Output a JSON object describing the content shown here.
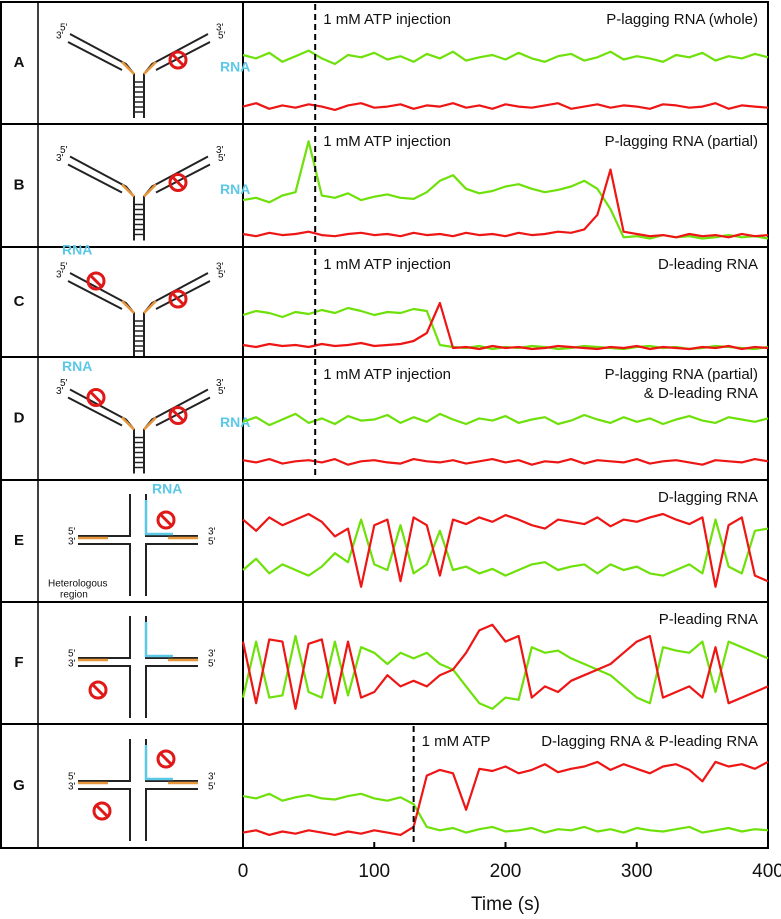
{
  "chart_data": [
    {
      "type": "line",
      "panel_label": "A",
      "title": "P-lagging RNA (whole)",
      "annotation": "1 mM ATP injection",
      "injection_time": 55,
      "diagram_labels": [
        "5'",
        "3'",
        "3'",
        "5'",
        "RNA"
      ],
      "xlim": [
        0,
        400
      ],
      "ylim": [
        0,
        1
      ],
      "x": [
        0,
        10,
        20,
        30,
        40,
        50,
        60,
        70,
        80,
        90,
        100,
        110,
        120,
        130,
        140,
        150,
        160,
        170,
        180,
        190,
        200,
        210,
        220,
        230,
        240,
        250,
        260,
        270,
        280,
        290,
        300,
        310,
        320,
        330,
        340,
        350,
        360,
        370,
        380,
        390,
        400
      ],
      "series": [
        {
          "color": "#6ee00a",
          "values": [
            0.58,
            0.55,
            0.6,
            0.52,
            0.57,
            0.62,
            0.55,
            0.5,
            0.58,
            0.56,
            0.6,
            0.54,
            0.57,
            0.52,
            0.59,
            0.55,
            0.61,
            0.53,
            0.56,
            0.58,
            0.54,
            0.6,
            0.55,
            0.52,
            0.57,
            0.59,
            0.53,
            0.56,
            0.61,
            0.54,
            0.57,
            0.55,
            0.52,
            0.58,
            0.56,
            0.6,
            0.53,
            0.57,
            0.55,
            0.59,
            0.56
          ]
        },
        {
          "color": "#ee1515",
          "values": [
            0.12,
            0.15,
            0.1,
            0.13,
            0.11,
            0.14,
            0.12,
            0.09,
            0.13,
            0.15,
            0.11,
            0.12,
            0.14,
            0.1,
            0.13,
            0.12,
            0.15,
            0.11,
            0.13,
            0.1,
            0.14,
            0.12,
            0.11,
            0.13,
            0.15,
            0.1,
            0.12,
            0.14,
            0.11,
            0.13,
            0.12,
            0.1,
            0.14,
            0.13,
            0.11,
            0.12,
            0.15,
            0.1,
            0.13,
            0.12,
            0.11
          ]
        }
      ]
    },
    {
      "type": "line",
      "panel_label": "B",
      "title": "P-lagging RNA (partial)",
      "annotation": "1 mM ATP injection",
      "injection_time": 55,
      "diagram_labels": [
        "5'",
        "3'",
        "3'",
        "5'",
        "RNA"
      ],
      "xlim": [
        0,
        400
      ],
      "ylim": [
        0,
        1
      ],
      "x": [
        0,
        10,
        20,
        30,
        40,
        50,
        60,
        70,
        80,
        90,
        100,
        110,
        120,
        130,
        140,
        150,
        160,
        170,
        180,
        190,
        200,
        210,
        220,
        230,
        240,
        250,
        260,
        270,
        280,
        290,
        300,
        310,
        320,
        330,
        340,
        350,
        360,
        370,
        380,
        390,
        400
      ],
      "series": [
        {
          "color": "#6ee00a",
          "values": [
            0.38,
            0.4,
            0.36,
            0.42,
            0.45,
            0.9,
            0.42,
            0.4,
            0.44,
            0.38,
            0.41,
            0.43,
            0.4,
            0.39,
            0.45,
            0.55,
            0.6,
            0.48,
            0.44,
            0.46,
            0.5,
            0.52,
            0.48,
            0.45,
            0.47,
            0.5,
            0.55,
            0.48,
            0.3,
            0.05,
            0.06,
            0.04,
            0.07,
            0.05,
            0.06,
            0.04,
            0.05,
            0.07,
            0.05,
            0.06,
            0.04
          ]
        },
        {
          "color": "#ee1515",
          "values": [
            0.08,
            0.06,
            0.09,
            0.07,
            0.08,
            0.1,
            0.07,
            0.06,
            0.08,
            0.09,
            0.07,
            0.08,
            0.06,
            0.09,
            0.07,
            0.08,
            0.06,
            0.09,
            0.07,
            0.08,
            0.06,
            0.09,
            0.07,
            0.08,
            0.1,
            0.09,
            0.12,
            0.25,
            0.65,
            0.1,
            0.08,
            0.06,
            0.07,
            0.05,
            0.08,
            0.06,
            0.07,
            0.05,
            0.08,
            0.06,
            0.07
          ]
        }
      ]
    },
    {
      "type": "line",
      "panel_label": "C",
      "title": "D-leading RNA",
      "annotation": "1 mM ATP injection",
      "injection_time": 55,
      "diagram_labels": [
        "RNA",
        "5'",
        "3'",
        "3'",
        "5'"
      ],
      "xlim": [
        0,
        400
      ],
      "ylim": [
        0,
        1
      ],
      "x": [
        0,
        10,
        20,
        30,
        40,
        50,
        60,
        70,
        80,
        90,
        100,
        110,
        120,
        130,
        140,
        150,
        160,
        170,
        180,
        190,
        200,
        210,
        220,
        230,
        240,
        250,
        260,
        270,
        280,
        290,
        300,
        310,
        320,
        330,
        340,
        350,
        360,
        370,
        380,
        390,
        400
      ],
      "series": [
        {
          "color": "#6ee00a",
          "values": [
            0.38,
            0.42,
            0.4,
            0.36,
            0.41,
            0.39,
            0.43,
            0.4,
            0.45,
            0.42,
            0.38,
            0.41,
            0.4,
            0.44,
            0.42,
            0.08,
            0.06,
            0.05,
            0.07,
            0.04,
            0.06,
            0.05,
            0.07,
            0.06,
            0.04,
            0.05,
            0.07,
            0.06,
            0.05,
            0.04,
            0.06,
            0.07,
            0.05,
            0.06,
            0.04,
            0.05,
            0.07,
            0.06,
            0.05,
            0.04,
            0.06
          ]
        },
        {
          "color": "#ee1515",
          "values": [
            0.08,
            0.06,
            0.09,
            0.07,
            0.08,
            0.06,
            0.09,
            0.07,
            0.08,
            0.1,
            0.07,
            0.08,
            0.09,
            0.12,
            0.2,
            0.5,
            0.05,
            0.06,
            0.04,
            0.07,
            0.05,
            0.06,
            0.04,
            0.05,
            0.07,
            0.06,
            0.05,
            0.04,
            0.06,
            0.05,
            0.07,
            0.04,
            0.06,
            0.05,
            0.04,
            0.06,
            0.05,
            0.07,
            0.04,
            0.06,
            0.05
          ]
        }
      ]
    },
    {
      "type": "line",
      "panel_label": "D",
      "title": [
        "P-lagging RNA (partial)",
        "& D-leading RNA"
      ],
      "annotation": "1 mM ATP injection",
      "injection_time": 55,
      "diagram_labels": [
        "RNA",
        "5'",
        "3'",
        "3'",
        "5'",
        "RNA"
      ],
      "xlim": [
        0,
        400
      ],
      "ylim": [
        0,
        1
      ],
      "x": [
        0,
        10,
        20,
        30,
        40,
        50,
        60,
        70,
        80,
        90,
        100,
        110,
        120,
        130,
        140,
        150,
        160,
        170,
        180,
        190,
        200,
        210,
        220,
        230,
        240,
        250,
        260,
        270,
        280,
        290,
        300,
        310,
        320,
        330,
        340,
        350,
        360,
        370,
        380,
        390,
        400
      ],
      "series": [
        {
          "color": "#6ee00a",
          "values": [
            0.48,
            0.52,
            0.45,
            0.5,
            0.55,
            0.47,
            0.51,
            0.46,
            0.53,
            0.49,
            0.5,
            0.54,
            0.47,
            0.52,
            0.48,
            0.55,
            0.5,
            0.46,
            0.51,
            0.49,
            0.53,
            0.47,
            0.5,
            0.52,
            0.46,
            0.49,
            0.54,
            0.5,
            0.47,
            0.52,
            0.48,
            0.51,
            0.46,
            0.5,
            0.53,
            0.49,
            0.47,
            0.52,
            0.5,
            0.48,
            0.51
          ]
        },
        {
          "color": "#ee1515",
          "values": [
            0.14,
            0.12,
            0.15,
            0.11,
            0.13,
            0.14,
            0.12,
            0.15,
            0.1,
            0.13,
            0.14,
            0.12,
            0.11,
            0.15,
            0.13,
            0.12,
            0.14,
            0.11,
            0.13,
            0.15,
            0.12,
            0.14,
            0.1,
            0.13,
            0.12,
            0.15,
            0.11,
            0.14,
            0.13,
            0.12,
            0.15,
            0.11,
            0.13,
            0.14,
            0.12,
            0.1,
            0.14,
            0.13,
            0.12,
            0.15,
            0.13
          ]
        }
      ]
    },
    {
      "type": "line",
      "panel_label": "E",
      "title": "D-lagging RNA",
      "diagram_labels": [
        "5'",
        "3'",
        "3'",
        "5'",
        "RNA",
        "Heterologous",
        "region"
      ],
      "xlim": [
        0,
        400
      ],
      "ylim": [
        0,
        1
      ],
      "x": [
        0,
        10,
        20,
        30,
        40,
        50,
        60,
        70,
        80,
        90,
        100,
        110,
        120,
        130,
        140,
        150,
        160,
        170,
        180,
        190,
        200,
        210,
        220,
        230,
        240,
        250,
        260,
        270,
        280,
        290,
        300,
        310,
        320,
        330,
        340,
        350,
        360,
        370,
        380,
        390,
        400
      ],
      "series": [
        {
          "color": "#6ee00a",
          "values": [
            0.25,
            0.35,
            0.22,
            0.3,
            0.25,
            0.2,
            0.28,
            0.4,
            0.32,
            0.7,
            0.3,
            0.25,
            0.65,
            0.22,
            0.3,
            0.6,
            0.25,
            0.28,
            0.22,
            0.26,
            0.2,
            0.25,
            0.3,
            0.32,
            0.25,
            0.28,
            0.3,
            0.22,
            0.3,
            0.25,
            0.28,
            0.22,
            0.2,
            0.25,
            0.3,
            0.22,
            0.7,
            0.28,
            0.22,
            0.6,
            0.62
          ]
        },
        {
          "color": "#ee1515",
          "values": [
            0.7,
            0.6,
            0.72,
            0.65,
            0.7,
            0.75,
            0.68,
            0.55,
            0.62,
            0.1,
            0.65,
            0.7,
            0.15,
            0.72,
            0.65,
            0.2,
            0.7,
            0.66,
            0.72,
            0.68,
            0.74,
            0.7,
            0.65,
            0.62,
            0.7,
            0.68,
            0.66,
            0.72,
            0.64,
            0.7,
            0.68,
            0.72,
            0.75,
            0.7,
            0.66,
            0.72,
            0.1,
            0.65,
            0.72,
            0.2,
            0.15
          ]
        }
      ]
    },
    {
      "type": "line",
      "panel_label": "F",
      "title": "P-leading RNA",
      "diagram_labels": [
        "5'",
        "3'",
        "3'",
        "5'"
      ],
      "xlim": [
        0,
        400
      ],
      "ylim": [
        0,
        1
      ],
      "x": [
        0,
        10,
        20,
        30,
        40,
        50,
        60,
        70,
        80,
        90,
        100,
        110,
        120,
        130,
        140,
        150,
        160,
        170,
        180,
        190,
        200,
        210,
        220,
        230,
        240,
        250,
        260,
        270,
        280,
        290,
        300,
        310,
        320,
        330,
        340,
        350,
        360,
        370,
        380,
        390,
        400
      ],
      "series": [
        {
          "color": "#6ee00a",
          "values": [
            0.2,
            0.7,
            0.2,
            0.22,
            0.75,
            0.25,
            0.2,
            0.7,
            0.22,
            0.65,
            0.6,
            0.5,
            0.6,
            0.55,
            0.6,
            0.5,
            0.45,
            0.3,
            0.15,
            0.1,
            0.2,
            0.18,
            0.65,
            0.6,
            0.62,
            0.55,
            0.5,
            0.45,
            0.4,
            0.3,
            0.2,
            0.15,
            0.65,
            0.62,
            0.6,
            0.7,
            0.25,
            0.7,
            0.65,
            0.6,
            0.55
          ]
        },
        {
          "color": "#ee1515",
          "values": [
            0.7,
            0.15,
            0.72,
            0.7,
            0.1,
            0.68,
            0.72,
            0.15,
            0.7,
            0.2,
            0.25,
            0.4,
            0.3,
            0.35,
            0.3,
            0.4,
            0.45,
            0.6,
            0.8,
            0.85,
            0.7,
            0.75,
            0.2,
            0.3,
            0.25,
            0.35,
            0.4,
            0.45,
            0.5,
            0.6,
            0.7,
            0.75,
            0.2,
            0.25,
            0.3,
            0.2,
            0.65,
            0.15,
            0.2,
            0.25,
            0.3
          ]
        }
      ]
    },
    {
      "type": "line",
      "panel_label": "G",
      "title": "D-lagging RNA & P-leading RNA",
      "annotation": "1 mM ATP",
      "injection_time": 130,
      "diagram_labels": [
        "5'",
        "3'",
        "3'",
        "5'"
      ],
      "xlim": [
        0,
        400
      ],
      "ylim": [
        0,
        1
      ],
      "xticks": [
        0,
        100,
        200,
        300,
        400
      ],
      "xlabel": "Time (s)",
      "x": [
        0,
        10,
        20,
        30,
        40,
        50,
        60,
        70,
        80,
        90,
        100,
        110,
        120,
        130,
        140,
        150,
        160,
        170,
        180,
        190,
        200,
        210,
        220,
        230,
        240,
        250,
        260,
        270,
        280,
        290,
        300,
        310,
        320,
        330,
        340,
        350,
        360,
        370,
        380,
        390,
        400
      ],
      "series": [
        {
          "color": "#6ee00a",
          "values": [
            0.42,
            0.4,
            0.44,
            0.38,
            0.41,
            0.43,
            0.4,
            0.39,
            0.42,
            0.44,
            0.4,
            0.38,
            0.41,
            0.35,
            0.15,
            0.12,
            0.14,
            0.1,
            0.13,
            0.15,
            0.11,
            0.12,
            0.14,
            0.1,
            0.13,
            0.12,
            0.15,
            0.11,
            0.13,
            0.1,
            0.14,
            0.12,
            0.11,
            0.13,
            0.15,
            0.1,
            0.12,
            0.14,
            0.11,
            0.13,
            0.12
          ]
        },
        {
          "color": "#ee1515",
          "values": [
            0.1,
            0.12,
            0.08,
            0.11,
            0.09,
            0.12,
            0.1,
            0.08,
            0.11,
            0.09,
            0.12,
            0.1,
            0.08,
            0.15,
            0.6,
            0.65,
            0.62,
            0.3,
            0.66,
            0.64,
            0.68,
            0.62,
            0.65,
            0.7,
            0.63,
            0.66,
            0.68,
            0.72,
            0.65,
            0.7,
            0.66,
            0.62,
            0.68,
            0.7,
            0.65,
            0.55,
            0.72,
            0.68,
            0.7,
            0.66,
            0.72
          ]
        }
      ]
    }
  ]
}
